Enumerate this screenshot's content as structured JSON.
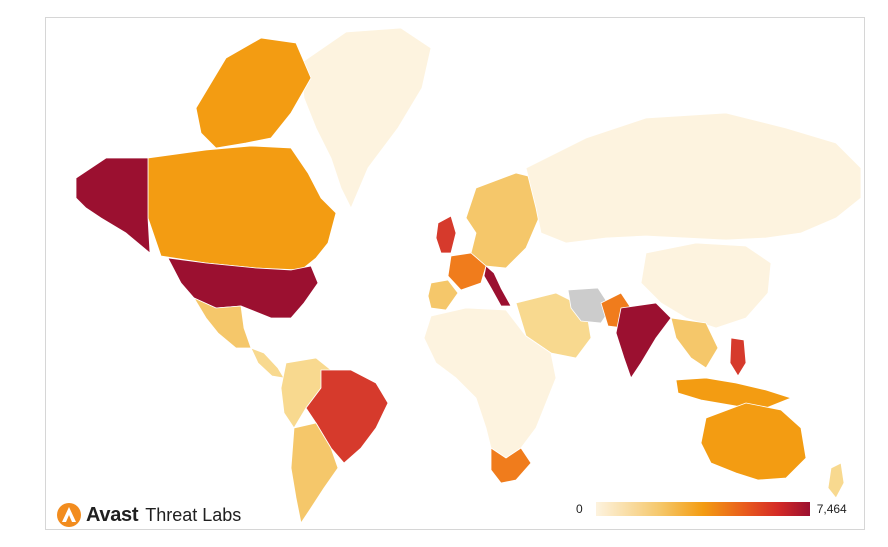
{
  "brand": {
    "name": "Avast",
    "subtitle": "Threat Labs",
    "logo_icon": "avast-logo-icon"
  },
  "legend": {
    "min_label": "0",
    "max_label": "7,464",
    "colors": [
      "#fdf3df",
      "#f5c76a",
      "#f39c12",
      "#e85a1d",
      "#d42a26",
      "#9b1030"
    ]
  },
  "colors": {
    "very_low": "#fdf3df",
    "low": "#f8d98f",
    "medium_low": "#f5c76a",
    "medium": "#f39c12",
    "medium_high": "#f07c1c",
    "high": "#d63a2c",
    "very_high": "#9b1030",
    "no_data": "#cccccc"
  },
  "regions": [
    {
      "name": "greenland",
      "level": "very_low"
    },
    {
      "name": "canada",
      "level": "medium"
    },
    {
      "name": "alaska",
      "level": "very_high"
    },
    {
      "name": "usa",
      "level": "very_high"
    },
    {
      "name": "mexico",
      "level": "medium_low"
    },
    {
      "name": "central-america",
      "level": "low"
    },
    {
      "name": "brazil",
      "level": "high"
    },
    {
      "name": "south-america-north",
      "level": "low"
    },
    {
      "name": "argentina",
      "level": "medium_low"
    },
    {
      "name": "uk",
      "level": "high"
    },
    {
      "name": "france",
      "level": "medium_high"
    },
    {
      "name": "italy",
      "level": "very_high"
    },
    {
      "name": "europe",
      "level": "medium_low"
    },
    {
      "name": "russia",
      "level": "very_low"
    },
    {
      "name": "china",
      "level": "very_low"
    },
    {
      "name": "india",
      "level": "very_high"
    },
    {
      "name": "pakistan",
      "level": "medium_high"
    },
    {
      "name": "iran",
      "level": "no_data"
    },
    {
      "name": "middle-east",
      "level": "low"
    },
    {
      "name": "africa",
      "level": "very_low"
    },
    {
      "name": "south-africa",
      "level": "medium_high"
    },
    {
      "name": "southeast-asia",
      "level": "medium_low"
    },
    {
      "name": "philippines",
      "level": "high"
    },
    {
      "name": "indonesia",
      "level": "medium"
    },
    {
      "name": "australia",
      "level": "medium"
    },
    {
      "name": "new-zealand",
      "level": "low"
    }
  ]
}
